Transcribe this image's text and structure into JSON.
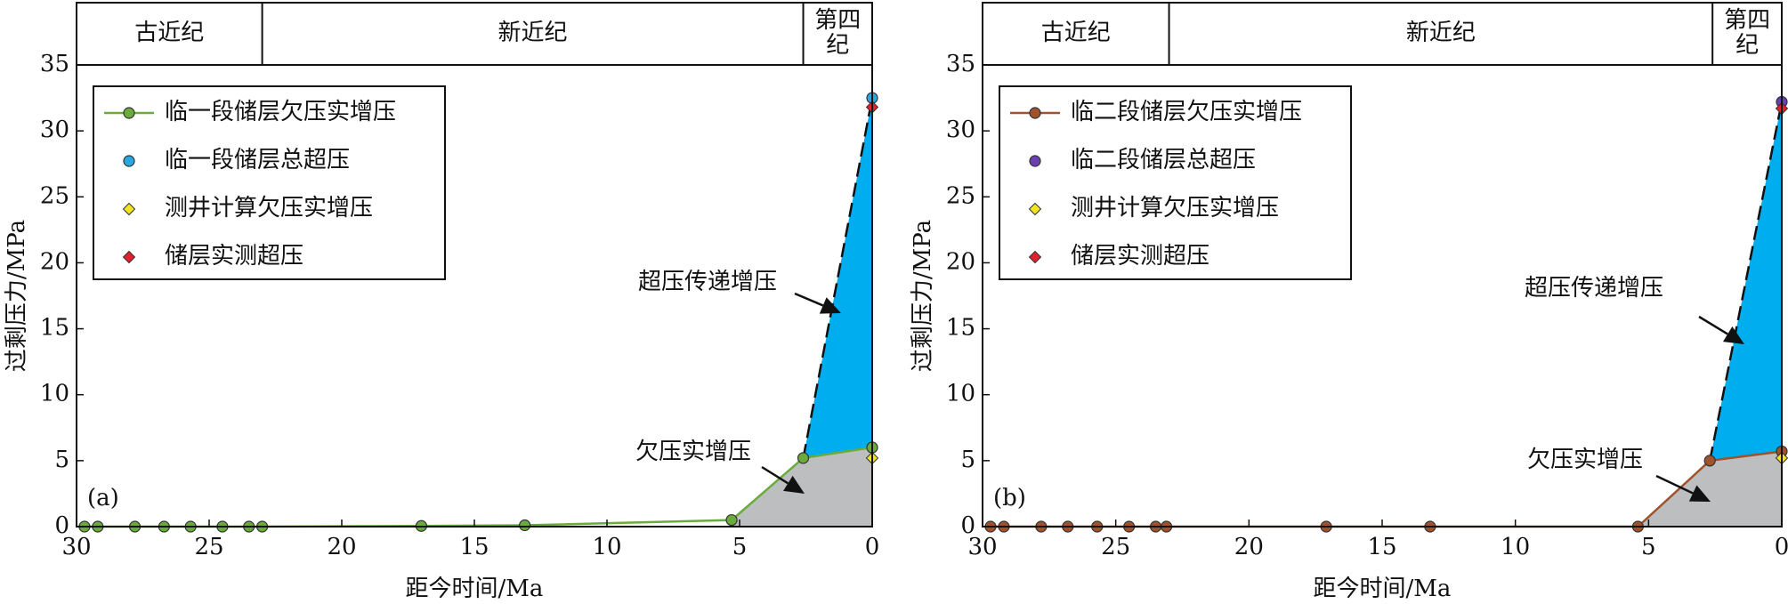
{
  "chart_data": [
    {
      "type": "line",
      "panel_label": "(a)",
      "xlabel": "距今时间/Ma",
      "ylabel": "过剩压力/MPa",
      "xlim": [
        30,
        0
      ],
      "ylim": [
        0,
        35
      ],
      "xticks": [
        30,
        25,
        20,
        15,
        10,
        5,
        0
      ],
      "yticks": [
        0,
        5,
        10,
        15,
        20,
        25,
        30,
        35
      ],
      "legend": "upper left",
      "fill_colors": [
        "#00aeef",
        "#bcbec0"
      ],
      "periods": [
        {
          "lines": [
            "古近纪"
          ],
          "start": 30,
          "end": 23
        },
        {
          "lines": [
            "新近纪"
          ],
          "start": 23,
          "end": 2.6
        },
        {
          "lines": [
            "第四",
            "纪"
          ],
          "start": 2.6,
          "end": 0
        }
      ],
      "annotations": [
        "超压传递增压",
        "欠压实增压"
      ],
      "series": [
        {
          "name": "临一段储层欠压实增压",
          "color": "#6aab3c",
          "marker": "circle",
          "line": true,
          "x": [
            29.7,
            29.2,
            27.8,
            26.7,
            25.7,
            24.5,
            23.5,
            23.0,
            17.0,
            13.1,
            5.3,
            2.6,
            0
          ],
          "values": [
            0,
            0,
            0,
            0,
            0,
            0,
            0,
            0,
            0.05,
            0.1,
            0.5,
            5.2,
            6.0
          ]
        },
        {
          "name": "临一段储层总超压",
          "color": "#29a8e0",
          "marker": "circle",
          "x": [
            0
          ],
          "values": [
            32.5
          ]
        },
        {
          "name": "测井计算欠压实增压",
          "color": "#f2e51f",
          "marker": "diamond",
          "x": [
            0
          ],
          "values": [
            5.2
          ]
        },
        {
          "name": "储层实测超压",
          "color": "#e0202e",
          "marker": "diamond",
          "x": [
            0
          ],
          "values": [
            31.8
          ]
        }
      ]
    },
    {
      "type": "line",
      "panel_label": "(b)",
      "xlabel": "距今时间/Ma",
      "ylabel": "过剩压力/MPa",
      "xlim": [
        30,
        0
      ],
      "ylim": [
        0,
        35
      ],
      "xticks": [
        30,
        25,
        20,
        15,
        10,
        5,
        0
      ],
      "yticks": [
        0,
        5,
        10,
        15,
        20,
        25,
        30,
        35
      ],
      "legend": "upper left",
      "fill_colors": [
        "#00aeef",
        "#bcbec0"
      ],
      "periods": [
        {
          "lines": [
            "古近纪"
          ],
          "start": 30,
          "end": 23
        },
        {
          "lines": [
            "新近纪"
          ],
          "start": 23,
          "end": 2.6
        },
        {
          "lines": [
            "第四",
            "纪"
          ],
          "start": 2.6,
          "end": 0
        }
      ],
      "annotations": [
        "超压传递增压",
        "欠压实增压"
      ],
      "series": [
        {
          "name": "临二段储层欠压实增压",
          "color": "#a0522d",
          "marker": "circle",
          "line": true,
          "x": [
            29.7,
            29.2,
            27.8,
            26.8,
            25.7,
            24.5,
            23.5,
            23.1,
            17.1,
            13.2,
            5.4,
            2.7,
            0
          ],
          "values": [
            0,
            0,
            0,
            0,
            0,
            0,
            0,
            0,
            0,
            0,
            0,
            5.0,
            5.7
          ]
        },
        {
          "name": "临二段储层总超压",
          "color": "#6a3fb0",
          "marker": "circle",
          "x": [
            0
          ],
          "values": [
            32.2
          ]
        },
        {
          "name": "测井计算欠压实增压",
          "color": "#f2e51f",
          "marker": "diamond",
          "x": [
            0
          ],
          "values": [
            5.2
          ]
        },
        {
          "name": "储层实测超压",
          "color": "#e0202e",
          "marker": "diamond",
          "x": [
            0
          ],
          "values": [
            31.7
          ]
        }
      ]
    }
  ]
}
